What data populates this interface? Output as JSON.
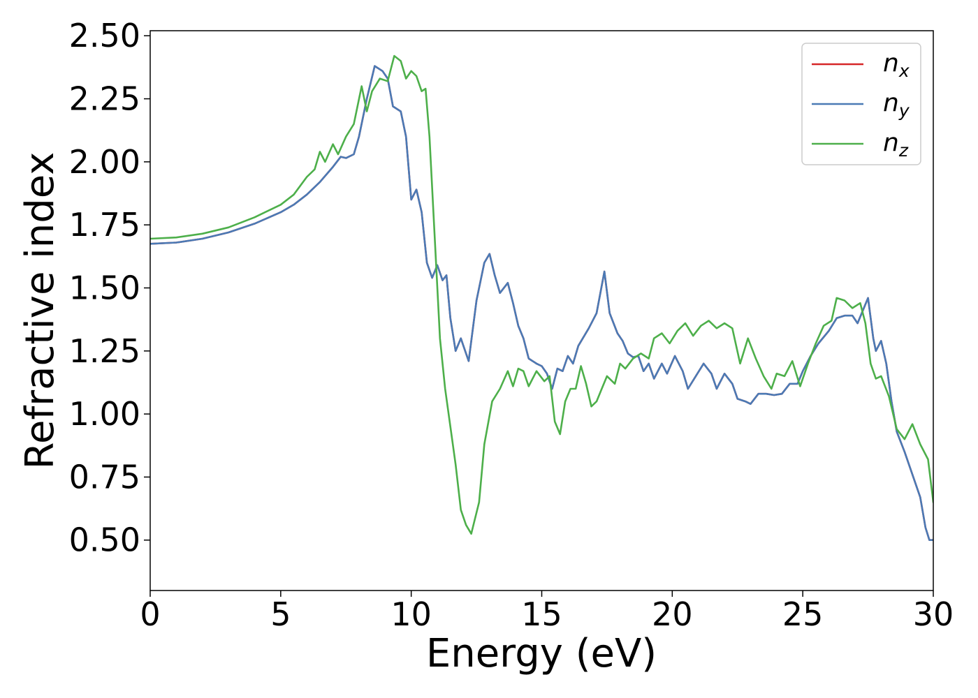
{
  "chart_data": {
    "type": "line",
    "xlabel": "Energy (eV)",
    "ylabel": "Refractive index",
    "xlim": [
      0,
      30
    ],
    "ylim": [
      0.3,
      2.52
    ],
    "x_ticks": [
      0,
      5,
      10,
      15,
      20,
      25,
      30
    ],
    "y_ticks": [
      0.5,
      0.75,
      1.0,
      1.25,
      1.5,
      1.75,
      2.0,
      2.25,
      2.5
    ],
    "x_tick_labels": [
      "0",
      "5",
      "10",
      "15",
      "20",
      "25",
      "30"
    ],
    "y_tick_labels": [
      "0.50",
      "0.75",
      "1.00",
      "1.25",
      "1.50",
      "1.75",
      "2.00",
      "2.25",
      "2.50"
    ],
    "grid": false,
    "legend_position": "top-right",
    "series": [
      {
        "name": "n",
        "subscript": "x",
        "color": "#d62728",
        "points": [
          [
            0,
            1.675
          ],
          [
            1,
            1.68
          ],
          [
            2,
            1.695
          ],
          [
            3,
            1.72
          ],
          [
            4,
            1.755
          ],
          [
            5,
            1.8
          ],
          [
            5.5,
            1.83
          ],
          [
            6,
            1.87
          ],
          [
            6.5,
            1.92
          ],
          [
            7,
            1.98
          ],
          [
            7.3,
            2.02
          ],
          [
            7.5,
            2.015
          ],
          [
            7.8,
            2.03
          ],
          [
            8,
            2.1
          ],
          [
            8.3,
            2.25
          ],
          [
            8.6,
            2.38
          ],
          [
            8.9,
            2.36
          ],
          [
            9.1,
            2.33
          ],
          [
            9.3,
            2.22
          ],
          [
            9.6,
            2.2
          ],
          [
            9.8,
            2.1
          ],
          [
            10,
            1.85
          ],
          [
            10.2,
            1.89
          ],
          [
            10.4,
            1.8
          ],
          [
            10.6,
            1.6
          ],
          [
            10.8,
            1.54
          ],
          [
            11,
            1.59
          ],
          [
            11.2,
            1.53
          ],
          [
            11.35,
            1.55
          ],
          [
            11.5,
            1.38
          ],
          [
            11.7,
            1.25
          ],
          [
            11.9,
            1.3
          ],
          [
            12,
            1.27
          ],
          [
            12.2,
            1.21
          ],
          [
            12.5,
            1.45
          ],
          [
            12.8,
            1.6
          ],
          [
            13,
            1.635
          ],
          [
            13.2,
            1.55
          ],
          [
            13.4,
            1.48
          ],
          [
            13.7,
            1.52
          ],
          [
            13.9,
            1.44
          ],
          [
            14.1,
            1.35
          ],
          [
            14.3,
            1.3
          ],
          [
            14.5,
            1.22
          ],
          [
            14.8,
            1.2
          ],
          [
            15,
            1.19
          ],
          [
            15.2,
            1.16
          ],
          [
            15.4,
            1.1
          ],
          [
            15.6,
            1.18
          ],
          [
            15.8,
            1.17
          ],
          [
            16,
            1.23
          ],
          [
            16.2,
            1.2
          ],
          [
            16.4,
            1.27
          ],
          [
            16.8,
            1.34
          ],
          [
            17.1,
            1.4
          ],
          [
            17.4,
            1.565
          ],
          [
            17.6,
            1.4
          ],
          [
            17.9,
            1.32
          ],
          [
            18.1,
            1.29
          ],
          [
            18.3,
            1.24
          ],
          [
            18.5,
            1.225
          ],
          [
            18.7,
            1.23
          ],
          [
            18.9,
            1.17
          ],
          [
            19.1,
            1.2
          ],
          [
            19.3,
            1.14
          ],
          [
            19.6,
            1.2
          ],
          [
            19.8,
            1.16
          ],
          [
            20.1,
            1.23
          ],
          [
            20.4,
            1.17
          ],
          [
            20.6,
            1.1
          ],
          [
            20.9,
            1.15
          ],
          [
            21.2,
            1.2
          ],
          [
            21.5,
            1.16
          ],
          [
            21.7,
            1.1
          ],
          [
            22,
            1.16
          ],
          [
            22.3,
            1.12
          ],
          [
            22.5,
            1.06
          ],
          [
            22.8,
            1.05
          ],
          [
            23,
            1.04
          ],
          [
            23.3,
            1.08
          ],
          [
            23.6,
            1.08
          ],
          [
            23.9,
            1.075
          ],
          [
            24.2,
            1.08
          ],
          [
            24.5,
            1.12
          ],
          [
            24.8,
            1.12
          ],
          [
            25,
            1.17
          ],
          [
            25.3,
            1.23
          ],
          [
            25.6,
            1.28
          ],
          [
            26,
            1.33
          ],
          [
            26.3,
            1.38
          ],
          [
            26.6,
            1.39
          ],
          [
            26.9,
            1.39
          ],
          [
            27.1,
            1.36
          ],
          [
            27.3,
            1.41
          ],
          [
            27.5,
            1.46
          ],
          [
            27.7,
            1.3
          ],
          [
            27.8,
            1.25
          ],
          [
            28,
            1.29
          ],
          [
            28.2,
            1.2
          ],
          [
            28.4,
            1.05
          ],
          [
            28.6,
            0.93
          ],
          [
            28.9,
            0.85
          ],
          [
            29.2,
            0.76
          ],
          [
            29.5,
            0.67
          ],
          [
            29.7,
            0.55
          ],
          [
            29.85,
            0.5
          ],
          [
            30,
            0.5
          ]
        ]
      },
      {
        "name": "n",
        "subscript": "y",
        "color": "#4a7ab5",
        "points": [
          [
            0,
            1.675
          ],
          [
            1,
            1.68
          ],
          [
            2,
            1.695
          ],
          [
            3,
            1.72
          ],
          [
            4,
            1.755
          ],
          [
            5,
            1.8
          ],
          [
            5.5,
            1.83
          ],
          [
            6,
            1.87
          ],
          [
            6.5,
            1.92
          ],
          [
            7,
            1.98
          ],
          [
            7.3,
            2.02
          ],
          [
            7.5,
            2.015
          ],
          [
            7.8,
            2.03
          ],
          [
            8,
            2.1
          ],
          [
            8.3,
            2.25
          ],
          [
            8.6,
            2.38
          ],
          [
            8.9,
            2.36
          ],
          [
            9.1,
            2.33
          ],
          [
            9.3,
            2.22
          ],
          [
            9.6,
            2.2
          ],
          [
            9.8,
            2.1
          ],
          [
            10,
            1.85
          ],
          [
            10.2,
            1.89
          ],
          [
            10.4,
            1.8
          ],
          [
            10.6,
            1.6
          ],
          [
            10.8,
            1.54
          ],
          [
            11,
            1.59
          ],
          [
            11.2,
            1.53
          ],
          [
            11.35,
            1.55
          ],
          [
            11.5,
            1.38
          ],
          [
            11.7,
            1.25
          ],
          [
            11.9,
            1.3
          ],
          [
            12,
            1.27
          ],
          [
            12.2,
            1.21
          ],
          [
            12.5,
            1.45
          ],
          [
            12.8,
            1.6
          ],
          [
            13,
            1.635
          ],
          [
            13.2,
            1.55
          ],
          [
            13.4,
            1.48
          ],
          [
            13.7,
            1.52
          ],
          [
            13.9,
            1.44
          ],
          [
            14.1,
            1.35
          ],
          [
            14.3,
            1.3
          ],
          [
            14.5,
            1.22
          ],
          [
            14.8,
            1.2
          ],
          [
            15,
            1.19
          ],
          [
            15.2,
            1.16
          ],
          [
            15.4,
            1.1
          ],
          [
            15.6,
            1.18
          ],
          [
            15.8,
            1.17
          ],
          [
            16,
            1.23
          ],
          [
            16.2,
            1.2
          ],
          [
            16.4,
            1.27
          ],
          [
            16.8,
            1.34
          ],
          [
            17.1,
            1.4
          ],
          [
            17.4,
            1.565
          ],
          [
            17.6,
            1.4
          ],
          [
            17.9,
            1.32
          ],
          [
            18.1,
            1.29
          ],
          [
            18.3,
            1.24
          ],
          [
            18.5,
            1.225
          ],
          [
            18.7,
            1.23
          ],
          [
            18.9,
            1.17
          ],
          [
            19.1,
            1.2
          ],
          [
            19.3,
            1.14
          ],
          [
            19.6,
            1.2
          ],
          [
            19.8,
            1.16
          ],
          [
            20.1,
            1.23
          ],
          [
            20.4,
            1.17
          ],
          [
            20.6,
            1.1
          ],
          [
            20.9,
            1.15
          ],
          [
            21.2,
            1.2
          ],
          [
            21.5,
            1.16
          ],
          [
            21.7,
            1.1
          ],
          [
            22,
            1.16
          ],
          [
            22.3,
            1.12
          ],
          [
            22.5,
            1.06
          ],
          [
            22.8,
            1.05
          ],
          [
            23,
            1.04
          ],
          [
            23.3,
            1.08
          ],
          [
            23.6,
            1.08
          ],
          [
            23.9,
            1.075
          ],
          [
            24.2,
            1.08
          ],
          [
            24.5,
            1.12
          ],
          [
            24.8,
            1.12
          ],
          [
            25,
            1.17
          ],
          [
            25.3,
            1.23
          ],
          [
            25.6,
            1.28
          ],
          [
            26,
            1.33
          ],
          [
            26.3,
            1.38
          ],
          [
            26.6,
            1.39
          ],
          [
            26.9,
            1.39
          ],
          [
            27.1,
            1.36
          ],
          [
            27.3,
            1.41
          ],
          [
            27.5,
            1.46
          ],
          [
            27.7,
            1.3
          ],
          [
            27.8,
            1.25
          ],
          [
            28,
            1.29
          ],
          [
            28.2,
            1.2
          ],
          [
            28.4,
            1.05
          ],
          [
            28.6,
            0.93
          ],
          [
            28.9,
            0.85
          ],
          [
            29.2,
            0.76
          ],
          [
            29.5,
            0.67
          ],
          [
            29.7,
            0.55
          ],
          [
            29.85,
            0.5
          ],
          [
            30,
            0.5
          ]
        ]
      },
      {
        "name": "n",
        "subscript": "z",
        "color": "#4daf4a",
        "points": [
          [
            0,
            1.695
          ],
          [
            1,
            1.7
          ],
          [
            2,
            1.715
          ],
          [
            3,
            1.74
          ],
          [
            4,
            1.78
          ],
          [
            5,
            1.83
          ],
          [
            5.5,
            1.87
          ],
          [
            6,
            1.94
          ],
          [
            6.3,
            1.97
          ],
          [
            6.5,
            2.04
          ],
          [
            6.7,
            2.0
          ],
          [
            7,
            2.07
          ],
          [
            7.2,
            2.03
          ],
          [
            7.5,
            2.1
          ],
          [
            7.8,
            2.15
          ],
          [
            8.1,
            2.3
          ],
          [
            8.3,
            2.2
          ],
          [
            8.5,
            2.28
          ],
          [
            8.8,
            2.33
          ],
          [
            9.1,
            2.32
          ],
          [
            9.35,
            2.42
          ],
          [
            9.6,
            2.4
          ],
          [
            9.8,
            2.33
          ],
          [
            10,
            2.36
          ],
          [
            10.2,
            2.34
          ],
          [
            10.4,
            2.28
          ],
          [
            10.55,
            2.29
          ],
          [
            10.7,
            2.1
          ],
          [
            10.9,
            1.7
          ],
          [
            11.1,
            1.3
          ],
          [
            11.3,
            1.1
          ],
          [
            11.5,
            0.95
          ],
          [
            11.7,
            0.8
          ],
          [
            11.9,
            0.62
          ],
          [
            12.1,
            0.56
          ],
          [
            12.3,
            0.525
          ],
          [
            12.6,
            0.65
          ],
          [
            12.8,
            0.88
          ],
          [
            13.1,
            1.05
          ],
          [
            13.4,
            1.1
          ],
          [
            13.7,
            1.17
          ],
          [
            13.9,
            1.11
          ],
          [
            14.1,
            1.18
          ],
          [
            14.3,
            1.17
          ],
          [
            14.5,
            1.11
          ],
          [
            14.8,
            1.17
          ],
          [
            15.1,
            1.13
          ],
          [
            15.3,
            1.15
          ],
          [
            15.5,
            0.97
          ],
          [
            15.7,
            0.92
          ],
          [
            15.9,
            1.05
          ],
          [
            16.1,
            1.1
          ],
          [
            16.3,
            1.1
          ],
          [
            16.5,
            1.19
          ],
          [
            16.7,
            1.12
          ],
          [
            16.9,
            1.03
          ],
          [
            17.1,
            1.05
          ],
          [
            17.3,
            1.1
          ],
          [
            17.5,
            1.15
          ],
          [
            17.8,
            1.12
          ],
          [
            18,
            1.2
          ],
          [
            18.2,
            1.18
          ],
          [
            18.5,
            1.22
          ],
          [
            18.8,
            1.24
          ],
          [
            19.1,
            1.22
          ],
          [
            19.3,
            1.3
          ],
          [
            19.6,
            1.32
          ],
          [
            19.9,
            1.28
          ],
          [
            20.2,
            1.33
          ],
          [
            20.5,
            1.36
          ],
          [
            20.8,
            1.31
          ],
          [
            21.1,
            1.35
          ],
          [
            21.4,
            1.37
          ],
          [
            21.7,
            1.34
          ],
          [
            22,
            1.36
          ],
          [
            22.3,
            1.34
          ],
          [
            22.6,
            1.2
          ],
          [
            22.9,
            1.3
          ],
          [
            23.2,
            1.22
          ],
          [
            23.5,
            1.15
          ],
          [
            23.8,
            1.1
          ],
          [
            24,
            1.16
          ],
          [
            24.3,
            1.15
          ],
          [
            24.6,
            1.21
          ],
          [
            24.9,
            1.11
          ],
          [
            25.2,
            1.2
          ],
          [
            25.5,
            1.28
          ],
          [
            25.8,
            1.35
          ],
          [
            26.1,
            1.37
          ],
          [
            26.3,
            1.46
          ],
          [
            26.6,
            1.45
          ],
          [
            26.9,
            1.42
          ],
          [
            27.2,
            1.44
          ],
          [
            27.4,
            1.36
          ],
          [
            27.6,
            1.2
          ],
          [
            27.8,
            1.14
          ],
          [
            28,
            1.15
          ],
          [
            28.3,
            1.07
          ],
          [
            28.6,
            0.94
          ],
          [
            28.9,
            0.9
          ],
          [
            29.2,
            0.96
          ],
          [
            29.5,
            0.88
          ],
          [
            29.8,
            0.82
          ],
          [
            30,
            0.65
          ]
        ]
      }
    ]
  }
}
